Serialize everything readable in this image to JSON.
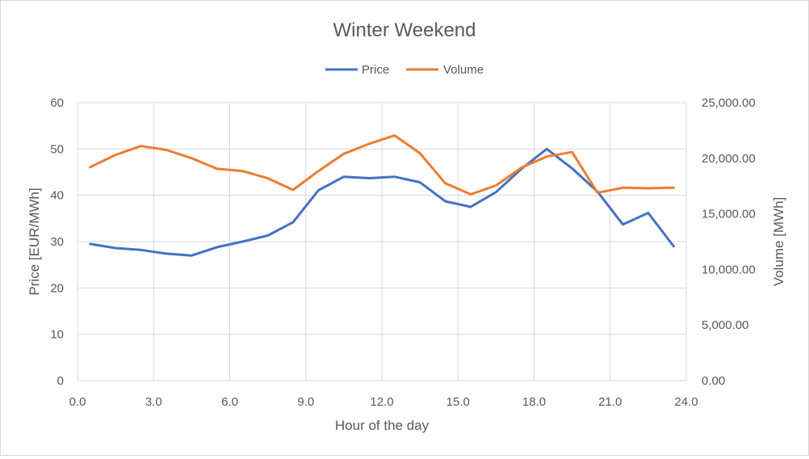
{
  "chart_data": {
    "type": "line",
    "title": "Winter Weekend",
    "xlabel": "Hour of the day",
    "ylabel": "Price [EUR/MWh]",
    "y2label": "Volume [MWh]",
    "xlim": [
      0,
      24
    ],
    "ylim": [
      0,
      60
    ],
    "y2lim": [
      0,
      25000
    ],
    "x_ticks": [
      "0.0",
      "3.0",
      "6.0",
      "9.0",
      "12.0",
      "15.0",
      "18.0",
      "21.0",
      "24.0"
    ],
    "y_ticks": [
      "0",
      "10",
      "20",
      "30",
      "40",
      "50",
      "60"
    ],
    "y2_ticks": [
      "0.00",
      "5,000.00",
      "10,000.00",
      "15,000.00",
      "20,000.00",
      "25,000.00"
    ],
    "grid": true,
    "legend_position": "top",
    "x": [
      0.5,
      1.5,
      2.5,
      3.5,
      4.5,
      5.5,
      6.5,
      7.5,
      8.5,
      9.5,
      10.5,
      11.5,
      12.5,
      13.5,
      14.5,
      15.5,
      16.5,
      17.5,
      18.5,
      19.5,
      20.5,
      21.5,
      22.5,
      23.5
    ],
    "series": [
      {
        "name": "Price",
        "axis": "left",
        "color": "#4472c4",
        "values": [
          29.5,
          28.6,
          28.2,
          27.4,
          27.0,
          28.8,
          30.0,
          31.3,
          34.2,
          41.1,
          44.0,
          43.7,
          44.0,
          42.8,
          38.7,
          37.5,
          40.7,
          45.7,
          50.0,
          45.8,
          40.8,
          33.7,
          36.2,
          29.0
        ]
      },
      {
        "name": "Volume",
        "axis": "right",
        "color": "#ed7d31",
        "values": [
          19200,
          20300,
          21100,
          20750,
          20000,
          19050,
          18850,
          18200,
          17150,
          18850,
          20400,
          21300,
          22050,
          20450,
          17750,
          16750,
          17550,
          19150,
          20150,
          20550,
          16900,
          17350,
          17300,
          17350
        ]
      }
    ]
  }
}
